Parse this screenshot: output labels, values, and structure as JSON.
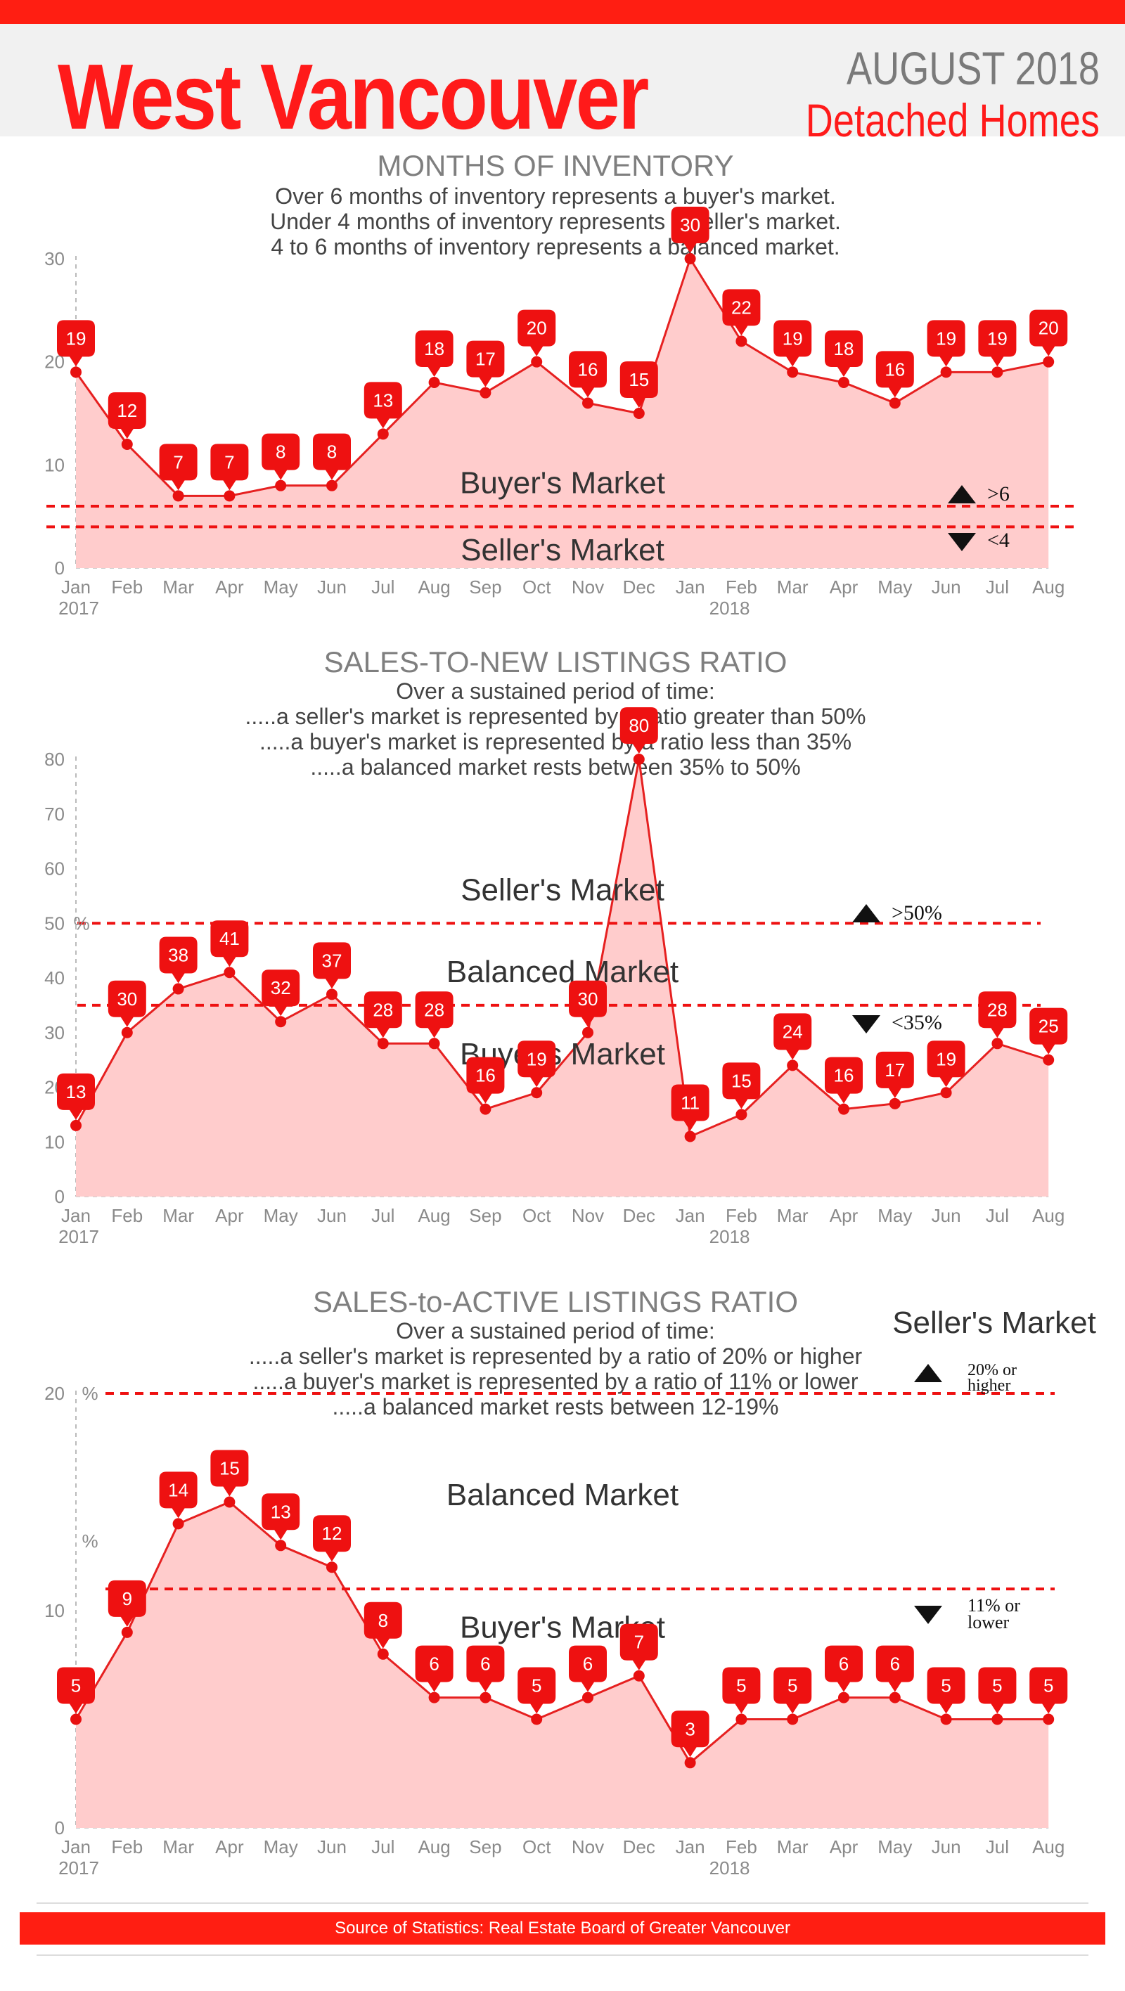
{
  "header": {
    "title": "West Vancouver",
    "period": "AUGUST   2018",
    "subtitle": "Detached Homes"
  },
  "months": [
    "Jan",
    "Feb",
    "Mar",
    "Apr",
    "May",
    "Jun",
    "Jul",
    "Aug",
    "Sep",
    "Oct",
    "Nov",
    "Dec",
    "Jan",
    "Feb",
    "Mar",
    "Apr",
    "May",
    "Jun",
    "Jul",
    "Aug"
  ],
  "years": [
    "2017",
    "2018"
  ],
  "colors": {
    "accent": "#ff1e12",
    "point": "#e81010",
    "fill": "#ffcccc",
    "line": "#e62020"
  },
  "chart_data": [
    {
      "type": "area",
      "title": "MONTHS OF INVENTORY",
      "description": [
        "Over 6 months of inventory represents a buyer's market.",
        "Under 4 months of inventory represents a seller's market.",
        "4 to 6 months of inventory represents a balanced market."
      ],
      "values": [
        19,
        12,
        7,
        7,
        8,
        8,
        13,
        18,
        17,
        20,
        16,
        15,
        30,
        22,
        19,
        18,
        16,
        19,
        19,
        20
      ],
      "ylim": [
        0,
        30
      ],
      "yticks": [
        0,
        10,
        20,
        30
      ],
      "thresholds": [
        6,
        4
      ],
      "zone_labels": [
        {
          "text": "Buyer's Market",
          "y": 8.2
        },
        {
          "text": "Seller's Market",
          "y": 1.7
        }
      ],
      "legend": {
        "up": ">6",
        "down": "<4"
      }
    },
    {
      "type": "area",
      "title": "SALES-TO-NEW LISTINGS RATIO",
      "description": [
        "Over a sustained period of time:",
        ".....a seller's market is represented by a ratio greater than 50%",
        ".....a buyer's market is represented by a ratio less than 35%",
        ".....a balanced market rests between 35% to 50%"
      ],
      "values": [
        13,
        30,
        38,
        41,
        32,
        37,
        28,
        28,
        16,
        19,
        30,
        80,
        11,
        15,
        24,
        16,
        17,
        19,
        28,
        25
      ],
      "ylim": [
        0,
        80
      ],
      "yticks": [
        0,
        10,
        20,
        30,
        40,
        50,
        60,
        70,
        80
      ],
      "thresholds": [
        50,
        35
      ],
      "zone_labels": [
        {
          "text": "Seller's Market",
          "y": 56
        },
        {
          "text": "Balanced Market",
          "y": 41
        },
        {
          "text": "Buyer's Market",
          "y": 26
        }
      ],
      "legend": {
        "up": ">50%",
        "down": "<35%"
      },
      "unit_marker": "%"
    },
    {
      "type": "area",
      "title": "SALES-to-ACTIVE LISTINGS RATIO",
      "description": [
        "Over a sustained period of time:",
        ".....a seller's market is represented by a ratio of 20% or higher",
        ".....a buyer's market is represented by a ratio of 11% or lower",
        ".....a balanced market rests between 12-19%"
      ],
      "values": [
        5,
        9,
        14,
        15,
        13,
        12,
        8,
        6,
        6,
        5,
        6,
        7,
        3,
        5,
        5,
        6,
        6,
        5,
        5,
        5
      ],
      "ylim": [
        0,
        20
      ],
      "yticks": [
        0,
        10,
        20
      ],
      "thresholds": [
        20,
        11
      ],
      "zone_labels": [
        {
          "text": "Balanced Market",
          "y": 15.3
        },
        {
          "text": "Buyer's Market",
          "y": 9.2
        }
      ],
      "side_label": "Seller's Market",
      "legend": {
        "up": "20% or higher",
        "down": "11% or lower"
      },
      "unit_marker": "%"
    }
  ],
  "footer": {
    "source": "Source of Statistics: Real Estate Board of Greater Vancouver"
  }
}
